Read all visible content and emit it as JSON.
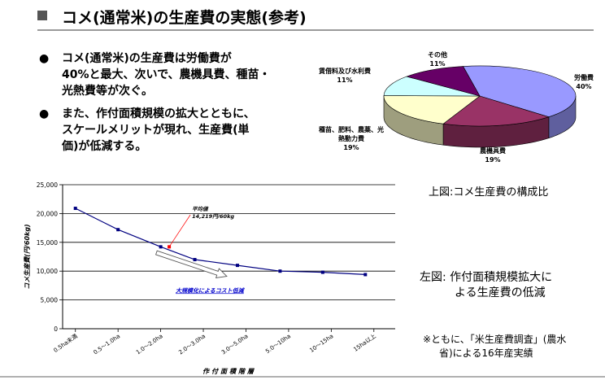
{
  "title": "コメ(通常米)の生産費の実態(参考)",
  "bullets": [
    {
      "lines": [
        "コメ(通常米)の生産費は労働費が",
        "40%と最大、次いで、農機具費、種苗・",
        "光熱費等が次ぐ。"
      ]
    },
    {
      "lines": [
        "また、作付面積規模の拡大とともに、",
        "スケールメリットが現れ、生産費(単",
        "価)が低減する。"
      ]
    }
  ],
  "captions": {
    "pie": "上図:コメ生産費の構成比",
    "line_1": "左図: 作付面積規模拡大に",
    "line_2": "よる生産費の低減",
    "source_1": "※ともに、「米生産費調査」(農水",
    "source_2": "省)による16年産実績"
  },
  "chart_data": [
    {
      "type": "pie",
      "style": "3d",
      "slices": [
        {
          "label": "労働費",
          "value": 40,
          "pct_label": "40%",
          "color": "#9999ff"
        },
        {
          "label": "農機具費",
          "value": 19,
          "pct_label": "19%",
          "color": "#993366"
        },
        {
          "label": "種苗、肥料、農薬、光熱動力費",
          "label_lines": [
            "種苗、肥料、農薬、光",
            "熱動力費"
          ],
          "value": 19,
          "pct_label": "19%",
          "color": "#ffffcc"
        },
        {
          "label": "賃借料及び水利費",
          "value": 11,
          "pct_label": "11%",
          "color": "#ccffff"
        },
        {
          "label": "その他",
          "value": 11,
          "pct_label": "11%",
          "color": "#660066"
        }
      ]
    },
    {
      "type": "line",
      "categories": [
        "0.5ha未満",
        "0.5〜1.0ha",
        "1.0〜2.0ha",
        "2.0〜3.0ha",
        "3.0〜5.0ha",
        "5.0〜10ha",
        "10〜15ha",
        "15ha以上"
      ],
      "series": [
        {
          "values": [
            20900,
            17200,
            14219,
            12000,
            11000,
            10000,
            9800,
            9400
          ],
          "color": "#000080"
        }
      ],
      "x_positions": [
        0,
        1,
        2,
        2.8,
        3.8,
        4.8,
        5.8,
        6.8
      ],
      "ylabel": "コメ生産費(円/60kg)",
      "xlabel": "作付面積階層",
      "ylim": [
        0,
        25000
      ],
      "yticks": [
        "0",
        "5,000",
        "10,000",
        "15,000",
        "20,000",
        "25,000"
      ],
      "grid": true,
      "annotations": [
        {
          "type": "point",
          "label_lines": [
            "平均値",
            "14,219円/60kg"
          ],
          "x": 2.2,
          "y": 14219,
          "color": "#ff0000"
        },
        {
          "type": "arrow",
          "label": "大規模化によるコスト低減",
          "color": "#0000cc"
        }
      ]
    }
  ]
}
